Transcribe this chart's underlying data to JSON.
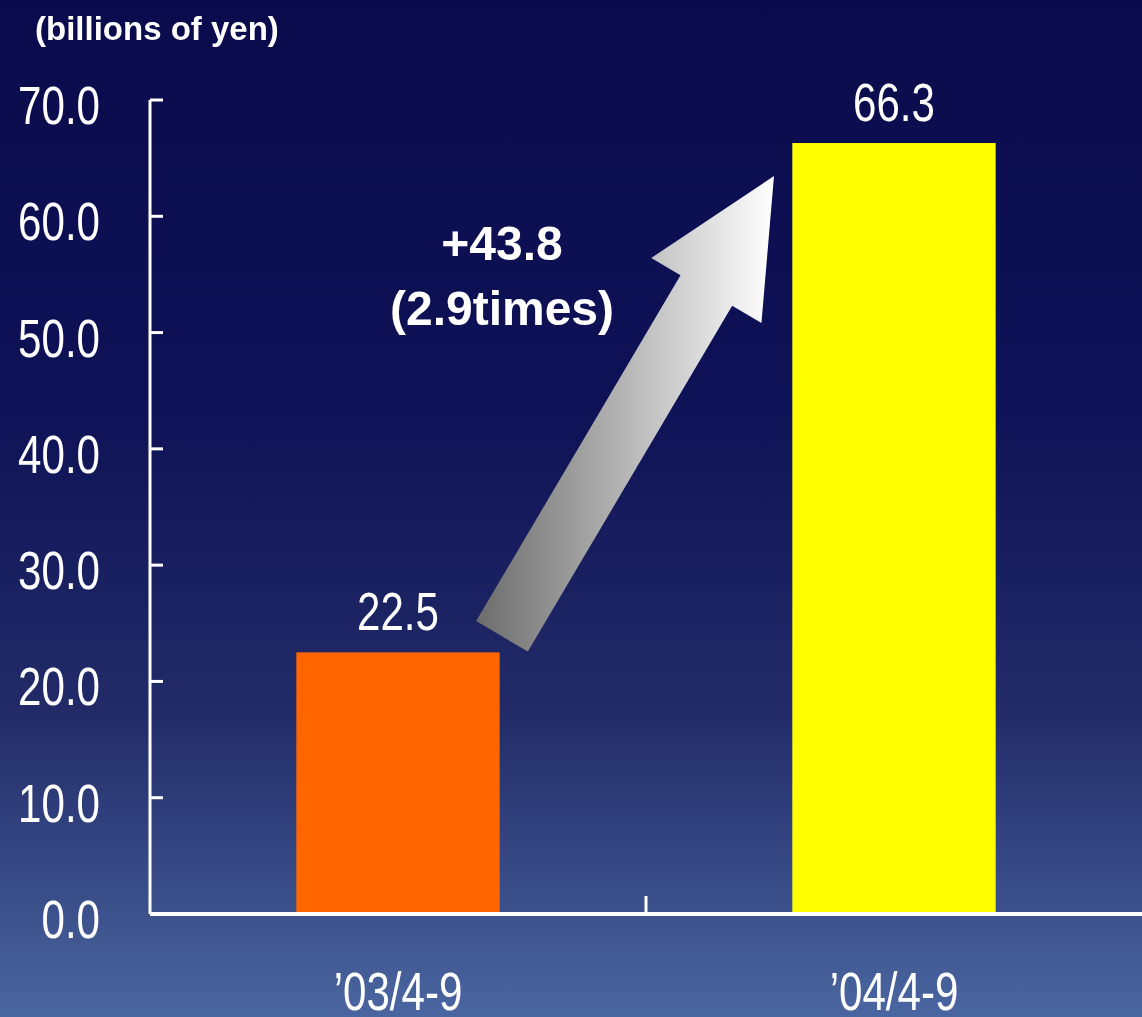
{
  "chart_data": {
    "type": "bar",
    "ylabel": "(billions of yen)",
    "categories": [
      "’03/4-9",
      "’04/4-9"
    ],
    "values": [
      22.5,
      66.3
    ],
    "colors": [
      "#ff6600",
      "#ffff00"
    ],
    "ylim": [
      0,
      70
    ],
    "yticks": [
      {
        "value": 0,
        "label": "0.0"
      },
      {
        "value": 10,
        "label": "10.0"
      },
      {
        "value": 20,
        "label": "20.0"
      },
      {
        "value": 30,
        "label": "30.0"
      },
      {
        "value": 40,
        "label": "40.0"
      },
      {
        "value": 50,
        "label": "50.0"
      },
      {
        "value": 60,
        "label": "60.0"
      },
      {
        "value": 70,
        "label": "70.0"
      }
    ],
    "data_labels": true,
    "annotations": [
      "+43.8",
      "(2.9times)"
    ]
  }
}
